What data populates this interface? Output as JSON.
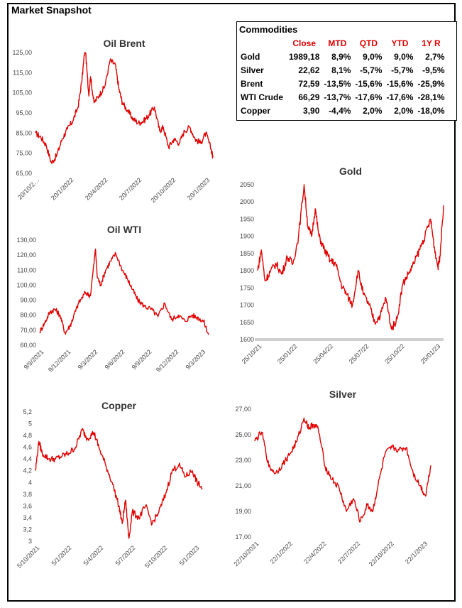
{
  "page": {
    "title": "Market Snapshot"
  },
  "table": {
    "caption": "Commodities",
    "columns": [
      "Close",
      "MTD",
      "QTD",
      "YTD",
      "1Y R"
    ],
    "rows": [
      {
        "name": "Gold",
        "values": [
          "1989,18",
          "8,9%",
          "9,0%",
          "9,0%",
          "2,7%"
        ]
      },
      {
        "name": "Silver",
        "values": [
          "22,62",
          "8,1%",
          "-5,7%",
          "-5,7%",
          "-9,5%"
        ]
      },
      {
        "name": "Brent",
        "values": [
          "72,59",
          "-13,5%",
          "-15,6%",
          "-15,6%",
          "-25,9%"
        ]
      },
      {
        "name": "WTI Crude",
        "values": [
          "66,29",
          "-13,7%",
          "-17,6%",
          "-17,6%",
          "-28,1%"
        ]
      },
      {
        "name": "Copper",
        "values": [
          "3,90",
          "-4,4%",
          "2,0%",
          "2,0%",
          "-18,0%"
        ]
      }
    ]
  },
  "chart_data": [
    {
      "id": "brent",
      "type": "line",
      "title": "Oil Brent",
      "color": "#e00000",
      "ylim": [
        65,
        125
      ],
      "yticks": [
        "65,00",
        "75,00",
        "85,00",
        "95,00",
        "105,00",
        "115,00",
        "125,00"
      ],
      "xticks": [
        "20/10/2…",
        "20/1/2022",
        "20/4/2022",
        "20/7/2022",
        "20/10/2022",
        "20/1/2023"
      ],
      "x": [
        0,
        0.03,
        0.06,
        0.09,
        0.12,
        0.15,
        0.18,
        0.21,
        0.24,
        0.26,
        0.28,
        0.3,
        0.31,
        0.33,
        0.36,
        0.39,
        0.42,
        0.45,
        0.47,
        0.49,
        0.52,
        0.55,
        0.58,
        0.61,
        0.64,
        0.67,
        0.7,
        0.72,
        0.75,
        0.78,
        0.81,
        0.84,
        0.87,
        0.9,
        0.93,
        0.96,
        0.99,
        1.0
      ],
      "values": [
        85,
        83,
        79,
        70,
        74,
        82,
        87,
        91,
        98,
        110,
        128,
        104,
        113,
        100,
        104,
        108,
        121,
        119,
        107,
        100,
        96,
        92,
        90,
        91,
        94,
        98,
        86,
        88,
        78,
        82,
        80,
        86,
        88,
        82,
        80,
        85,
        77,
        73
      ]
    },
    {
      "id": "wti",
      "type": "line",
      "title": "Oil WTI",
      "color": "#e00000",
      "ylim": [
        60,
        130
      ],
      "yticks": [
        "60,00",
        "70,00",
        "80,00",
        "90,00",
        "100,00",
        "110,00",
        "120,00",
        "130,00"
      ],
      "xticks": [
        "9/9/2021",
        "9/12/2021",
        "9/3/2022",
        "9/6/2022",
        "9/9/2022",
        "9/12/2022",
        "9/3/2023"
      ],
      "x": [
        0,
        0.03,
        0.06,
        0.09,
        0.12,
        0.15,
        0.18,
        0.2,
        0.23,
        0.27,
        0.3,
        0.33,
        0.34,
        0.36,
        0.39,
        0.42,
        0.45,
        0.49,
        0.52,
        0.55,
        0.58,
        0.62,
        0.66,
        0.7,
        0.74,
        0.78,
        0.82,
        0.86,
        0.9,
        0.94,
        0.97,
        1.0
      ],
      "values": [
        69,
        75,
        82,
        84,
        80,
        68,
        73,
        79,
        88,
        95,
        93,
        124,
        106,
        100,
        110,
        116,
        121,
        110,
        104,
        97,
        90,
        86,
        84,
        79,
        88,
        77,
        80,
        76,
        80,
        78,
        76,
        67
      ]
    },
    {
      "id": "copper",
      "type": "line",
      "title": "Copper",
      "color": "#e00000",
      "ylim": [
        3.0,
        5.2
      ],
      "yticks": [
        "3",
        "3,2",
        "3,4",
        "3,6",
        "3,8",
        "4",
        "4,2",
        "4,4",
        "4,6",
        "4,8",
        "5",
        "5,2"
      ],
      "xticks": [
        "5/10/2021",
        "5/1/2022",
        "5/4/2022",
        "5/7/2022",
        "5/10/2022",
        "5/1/2023"
      ],
      "x": [
        0,
        0.02,
        0.04,
        0.08,
        0.12,
        0.16,
        0.2,
        0.24,
        0.28,
        0.31,
        0.35,
        0.38,
        0.42,
        0.46,
        0.5,
        0.52,
        0.54,
        0.56,
        0.58,
        0.62,
        0.66,
        0.7,
        0.74,
        0.78,
        0.82,
        0.86,
        0.9,
        0.94,
        0.97,
        1.0
      ],
      "values": [
        4.2,
        4.7,
        4.5,
        4.4,
        4.4,
        4.45,
        4.5,
        4.6,
        4.9,
        4.75,
        4.85,
        4.6,
        4.3,
        4.0,
        3.6,
        3.3,
        3.7,
        3.05,
        3.5,
        3.4,
        3.6,
        3.3,
        3.5,
        3.8,
        4.2,
        4.3,
        4.1,
        4.2,
        4.0,
        3.9
      ]
    },
    {
      "id": "gold",
      "type": "line",
      "title": "Gold",
      "color": "#e00000",
      "ylim": [
        1600,
        2050
      ],
      "yticks": [
        "1600",
        "1650",
        "1700",
        "1750",
        "1800",
        "1850",
        "1900",
        "1950",
        "2000",
        "2050"
      ],
      "xticks": [
        "25/10/21",
        "25/01/22",
        "25/04/22",
        "25/07/22",
        "25/10/22",
        "25/01/23"
      ],
      "x": [
        0,
        0.02,
        0.04,
        0.07,
        0.1,
        0.13,
        0.16,
        0.19,
        0.22,
        0.25,
        0.27,
        0.29,
        0.31,
        0.33,
        0.36,
        0.39,
        0.42,
        0.45,
        0.48,
        0.51,
        0.54,
        0.57,
        0.6,
        0.63,
        0.66,
        0.69,
        0.72,
        0.75,
        0.78,
        0.81,
        0.84,
        0.87,
        0.9,
        0.93,
        0.95,
        0.97,
        0.98,
        1.0
      ],
      "values": [
        1800,
        1860,
        1770,
        1800,
        1820,
        1790,
        1840,
        1820,
        1900,
        2050,
        1930,
        1900,
        1980,
        1900,
        1860,
        1830,
        1820,
        1760,
        1730,
        1700,
        1800,
        1730,
        1700,
        1650,
        1670,
        1720,
        1630,
        1660,
        1760,
        1790,
        1820,
        1860,
        1900,
        1950,
        1870,
        1810,
        1840,
        1990
      ]
    },
    {
      "id": "silver",
      "type": "line",
      "title": "Silver",
      "color": "#e00000",
      "ylim": [
        17,
        27
      ],
      "yticks": [
        "17,00",
        "19,00",
        "21,00",
        "23,00",
        "25,00",
        "27,00"
      ],
      "xticks": [
        "22/10/2021",
        "22/1/2022",
        "22/4/2022",
        "22/7/2022",
        "22/10/2022",
        "22/1/2023"
      ],
      "x": [
        0,
        0.04,
        0.08,
        0.12,
        0.16,
        0.2,
        0.24,
        0.28,
        0.31,
        0.33,
        0.36,
        0.4,
        0.44,
        0.48,
        0.52,
        0.56,
        0.6,
        0.64,
        0.67,
        0.7,
        0.74,
        0.78,
        0.82,
        0.86,
        0.9,
        0.94,
        0.97,
        1.0
      ],
      "values": [
        24.5,
        25.2,
        22.5,
        22.0,
        22.7,
        23.5,
        24.5,
        26.3,
        25.5,
        25.8,
        25.5,
        22.5,
        21.5,
        20.8,
        19.0,
        20.0,
        18.2,
        19.5,
        19.0,
        21.0,
        23.5,
        24.0,
        23.8,
        24.0,
        22.0,
        21.0,
        20.2,
        22.6
      ]
    }
  ]
}
